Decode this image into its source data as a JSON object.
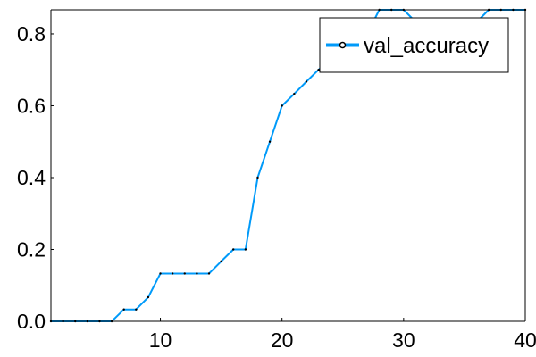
{
  "chart_data": {
    "type": "line",
    "title": "",
    "xlabel": "",
    "ylabel": "",
    "xlim": [
      1,
      40
    ],
    "ylim": [
      0,
      0.867
    ],
    "x_ticks": [
      10,
      20,
      30,
      40
    ],
    "y_ticks": [
      0.0,
      0.2,
      0.4,
      0.6,
      0.8
    ],
    "x_tick_labels": [
      "10",
      "20",
      "30",
      "40"
    ],
    "y_tick_labels": [
      "0.0",
      "0.2",
      "0.4",
      "0.6",
      "0.8"
    ],
    "grid": false,
    "legend": "top-right",
    "series": [
      {
        "name": "val_accuracy",
        "color": "#009af9",
        "x": [
          1,
          2,
          3,
          4,
          5,
          6,
          7,
          8,
          9,
          10,
          11,
          12,
          13,
          14,
          15,
          16,
          17,
          18,
          19,
          20,
          21,
          22,
          23,
          24,
          25,
          26,
          27,
          28,
          29,
          30,
          31,
          32,
          33,
          34,
          35,
          36,
          37,
          38,
          39,
          40
        ],
        "y": [
          0,
          0,
          0,
          0,
          0,
          0,
          0.033,
          0.033,
          0.067,
          0.133,
          0.133,
          0.133,
          0.133,
          0.133,
          0.167,
          0.2,
          0.2,
          0.4,
          0.5,
          0.6,
          0.633,
          0.667,
          0.7,
          0.733,
          0.767,
          0.767,
          0.8,
          0.867,
          0.867,
          0.867,
          0.833,
          0.833,
          0.833,
          0.833,
          0.833,
          0.833,
          0.867,
          0.867,
          0.867,
          0.867
        ]
      }
    ]
  }
}
